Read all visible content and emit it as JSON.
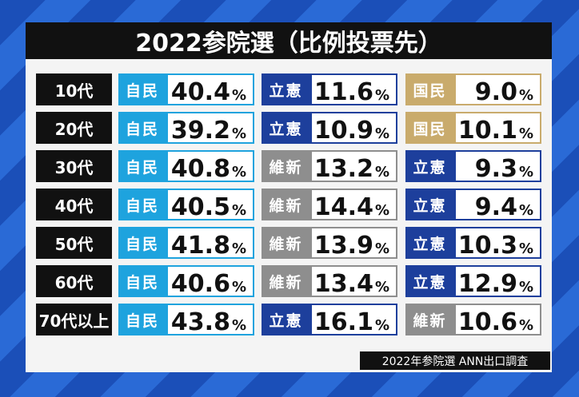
{
  "header": {
    "title": "2022参院選（比例投票先）"
  },
  "table": {
    "rows": [
      {
        "age": "10代",
        "cells": [
          {
            "party": "自民",
            "value": "40.4",
            "unit": "%",
            "color": "#1ea3de"
          },
          {
            "party": "立憲",
            "value": "11.6",
            "unit": "%",
            "color": "#1d3f9c"
          },
          {
            "party": "国民",
            "value": "9.0",
            "unit": "%",
            "color": "#c9ab6c"
          }
        ]
      },
      {
        "age": "20代",
        "cells": [
          {
            "party": "自民",
            "value": "39.2",
            "unit": "%",
            "color": "#1ea3de"
          },
          {
            "party": "立憲",
            "value": "10.9",
            "unit": "%",
            "color": "#1d3f9c"
          },
          {
            "party": "国民",
            "value": "10.1",
            "unit": "%",
            "color": "#c9ab6c"
          }
        ]
      },
      {
        "age": "30代",
        "cells": [
          {
            "party": "自民",
            "value": "40.8",
            "unit": "%",
            "color": "#1ea3de"
          },
          {
            "party": "維新",
            "value": "13.2",
            "unit": "%",
            "color": "#8e8e8e"
          },
          {
            "party": "立憲",
            "value": "9.3",
            "unit": "%",
            "color": "#1d3f9c"
          }
        ]
      },
      {
        "age": "40代",
        "cells": [
          {
            "party": "自民",
            "value": "40.5",
            "unit": "%",
            "color": "#1ea3de"
          },
          {
            "party": "維新",
            "value": "14.4",
            "unit": "%",
            "color": "#8e8e8e"
          },
          {
            "party": "立憲",
            "value": "9.4",
            "unit": "%",
            "color": "#1d3f9c"
          }
        ]
      },
      {
        "age": "50代",
        "cells": [
          {
            "party": "自民",
            "value": "41.8",
            "unit": "%",
            "color": "#1ea3de"
          },
          {
            "party": "維新",
            "value": "13.9",
            "unit": "%",
            "color": "#8e8e8e"
          },
          {
            "party": "立憲",
            "value": "10.3",
            "unit": "%",
            "color": "#1d3f9c"
          }
        ]
      },
      {
        "age": "60代",
        "cells": [
          {
            "party": "自民",
            "value": "40.6",
            "unit": "%",
            "color": "#1ea3de"
          },
          {
            "party": "維新",
            "value": "13.4",
            "unit": "%",
            "color": "#8e8e8e"
          },
          {
            "party": "立憲",
            "value": "12.9",
            "unit": "%",
            "color": "#1d3f9c"
          }
        ]
      },
      {
        "age": "70代以上",
        "cells": [
          {
            "party": "自民",
            "value": "43.8",
            "unit": "%",
            "color": "#1ea3de"
          },
          {
            "party": "立憲",
            "value": "16.1",
            "unit": "%",
            "color": "#1d3f9c"
          },
          {
            "party": "維新",
            "value": "10.6",
            "unit": "%",
            "color": "#8e8e8e"
          }
        ]
      }
    ]
  },
  "footer": {
    "source": "2022年参院選 ANN出口調査"
  }
}
